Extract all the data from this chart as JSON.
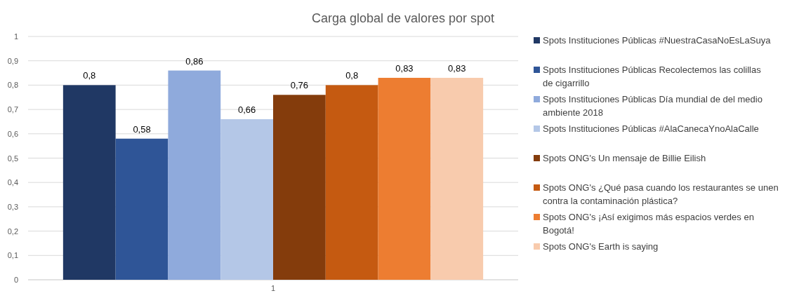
{
  "chart_data": {
    "type": "bar",
    "title": "Carga global de valores por spot",
    "categories": [
      "1"
    ],
    "series": [
      {
        "name": "Spots Instituciones Públicas #NuestraCasaNoEsLaSuya",
        "color": "#203864",
        "values": [
          0.8
        ],
        "value_labels": [
          "0,8"
        ]
      },
      {
        "name": "Spots Instituciones Públicas Recolectemos las colillas de cigarrillo",
        "color": "#2f5597",
        "values": [
          0.58
        ],
        "value_labels": [
          "0,58"
        ]
      },
      {
        "name": "Spots Instituciones Públicas Día mundial de del medio ambiente 2018",
        "color": "#8faadc",
        "values": [
          0.86
        ],
        "value_labels": [
          "0,86"
        ]
      },
      {
        "name": "Spots Instituciones Públicas #AlaCanecaYnoAlaCalle",
        "color": "#b4c7e7",
        "values": [
          0.66
        ],
        "value_labels": [
          "0,66"
        ]
      },
      {
        "name": "Spots ONG's Un mensaje de Billie Eilish",
        "color": "#843c0c",
        "values": [
          0.76
        ],
        "value_labels": [
          "0,76"
        ]
      },
      {
        "name": "Spots ONG's ¿Qué pasa cuando los restaurantes se unen contra la contaminación plástica?",
        "color": "#c55a11",
        "values": [
          0.8
        ],
        "value_labels": [
          "0,8"
        ]
      },
      {
        "name": "Spots ONG's ¡Así exigimos más espacios verdes en Bogotá!",
        "color": "#ed7d31",
        "values": [
          0.83
        ],
        "value_labels": [
          "0,83"
        ]
      },
      {
        "name": "Spots ONG's Earth is saying",
        "color": "#f8cbad",
        "values": [
          0.83
        ],
        "value_labels": [
          "0,83"
        ]
      }
    ],
    "ylim": [
      0,
      1
    ],
    "yticks": [
      {
        "value": 0,
        "label": "0"
      },
      {
        "value": 0.1,
        "label": "0,1"
      },
      {
        "value": 0.2,
        "label": "0,2"
      },
      {
        "value": 0.3,
        "label": "0,3"
      },
      {
        "value": 0.4,
        "label": "0,4"
      },
      {
        "value": 0.5,
        "label": "0,5"
      },
      {
        "value": 0.6,
        "label": "0,6"
      },
      {
        "value": 0.7,
        "label": "0,7"
      },
      {
        "value": 0.8,
        "label": "0,8"
      },
      {
        "value": 0.9,
        "label": "0,9"
      },
      {
        "value": 1,
        "label": "1"
      }
    ],
    "grid": "y",
    "legend": "right"
  }
}
